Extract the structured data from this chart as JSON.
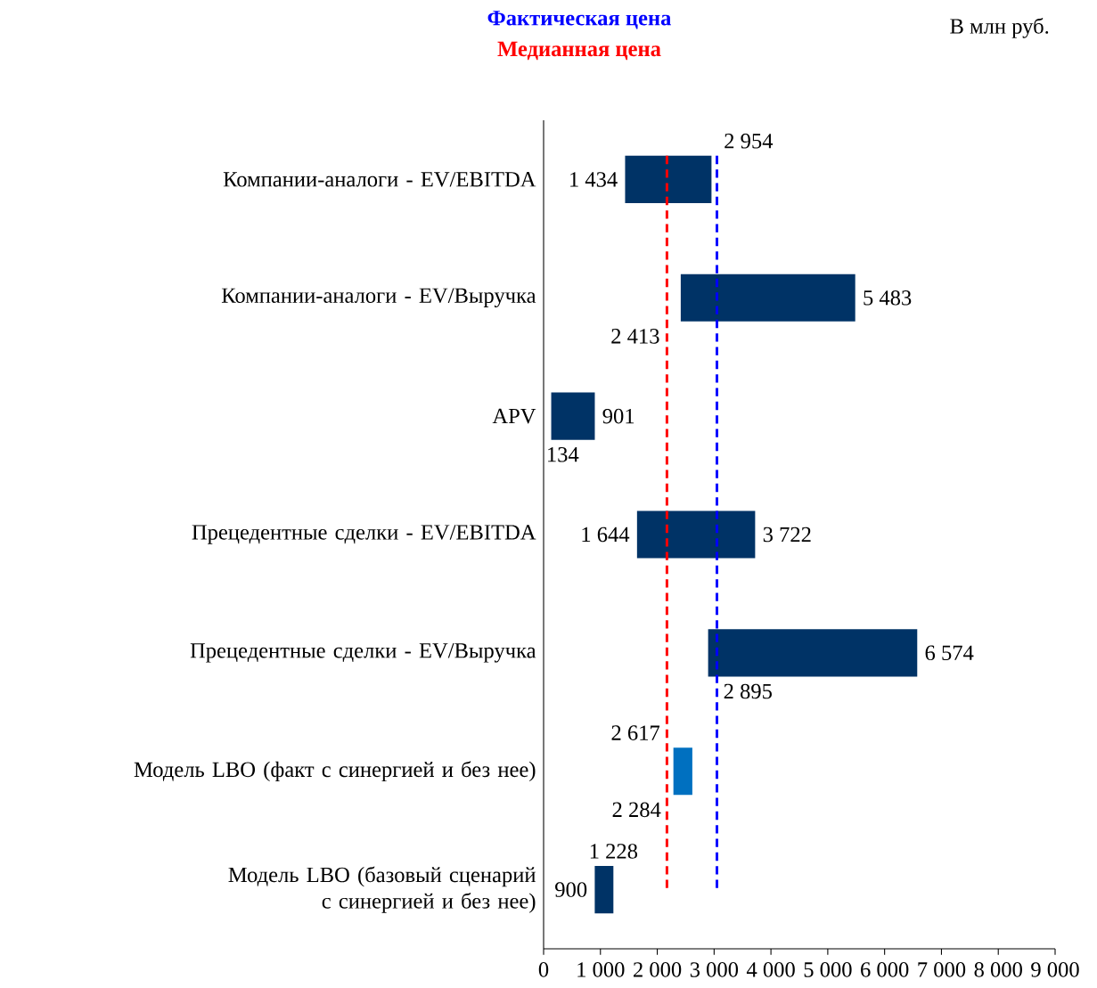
{
  "chart_data": {
    "type": "bar",
    "orientation": "horizontal",
    "categories": [
      "Компании-аналоги - EV/EBITDA",
      "Компании-аналоги - EV/Выручка",
      "APV",
      "Прецедентные сделки - EV/EBITDA",
      "Прецедентные сделки - EV/Выручка",
      "Модель LBO (факт с синергией и без нее)",
      "Модель LBO (базовый сценарий с синергией и без нее)"
    ],
    "base": [
      1434,
      2413,
      134,
      1644,
      2895,
      2284,
      900
    ],
    "values": [
      1520,
      3070,
      767,
      2078,
      3679,
      333,
      328
    ],
    "colors": [
      "#003366",
      "#003366",
      "#003366",
      "#003366",
      "#003366",
      "#0070c0",
      "#003366"
    ],
    "xlim": [
      0,
      9000
    ],
    "xticks": [
      0,
      {
        "value": 1000,
        "label": "1 000"
      },
      {
        "value": 2000,
        "label": "2 000"
      },
      {
        "value": 3000,
        "label": "3 000"
      },
      {
        "value": 4000,
        "label": "4 000"
      },
      {
        "value": 5000,
        "label": "5 000"
      },
      {
        "value": 6000,
        "label": "6 000"
      },
      {
        "value": 7000,
        "label": "7 000"
      },
      {
        "value": 8000,
        "label": "8 000"
      },
      {
        "value": 9000,
        "label": "9 000"
      }
    ],
    "ref_lines": [
      {
        "axis": "x",
        "value": 3050,
        "label": "Фактическая цена",
        "color": "#0000ff",
        "line_style": "dashed"
      },
      {
        "axis": "x",
        "value": 2170,
        "label": "Медианная цена",
        "color": "#ff0000",
        "line_style": "dashed"
      }
    ],
    "annotations": [
      "В млн руб.",
      {
        "text": "1 434",
        "x": 1434,
        "y": "Компании-аналоги - EV/EBITDA"
      },
      {
        "text": "2 954",
        "x": 2954,
        "y": "Компании-аналоги - EV/EBITDA"
      },
      {
        "text": "2 413",
        "x": 2413,
        "y": "Компании-аналоги - EV/Выручка"
      },
      {
        "text": "5 483",
        "x": 5483,
        "y": "Компании-аналоги - EV/Выручка"
      },
      {
        "text": "134",
        "x": 134,
        "y": "APV"
      },
      {
        "text": "901",
        "x": 901,
        "y": "APV"
      },
      {
        "text": "1 644",
        "x": 1644,
        "y": "Прецедентные сделки - EV/EBITDA"
      },
      {
        "text": "3 722",
        "x": 3722,
        "y": "Прецедентные сделки - EV/EBITDA"
      },
      {
        "text": "2 895",
        "x": 2895,
        "y": "Прецедентные сделки - EV/Выручка"
      },
      {
        "text": "6 574",
        "x": 6574,
        "y": "Прецедентные сделки - EV/Выручка"
      },
      {
        "text": "2 284",
        "x": 2284,
        "y": "Модель LBO (факт с синергией и без нее)"
      },
      {
        "text": "2 617",
        "x": 2617,
        "y": "Модель LBO (факт с синергией и без нее)"
      },
      {
        "text": "900",
        "x": 900,
        "y": "Модель LBO (базовый сценарий с синергией и без нее)"
      },
      {
        "text": "1 228",
        "x": 1228,
        "y": "Модель LBO (базовый сценарий с синергией и без нее)"
      }
    ]
  }
}
